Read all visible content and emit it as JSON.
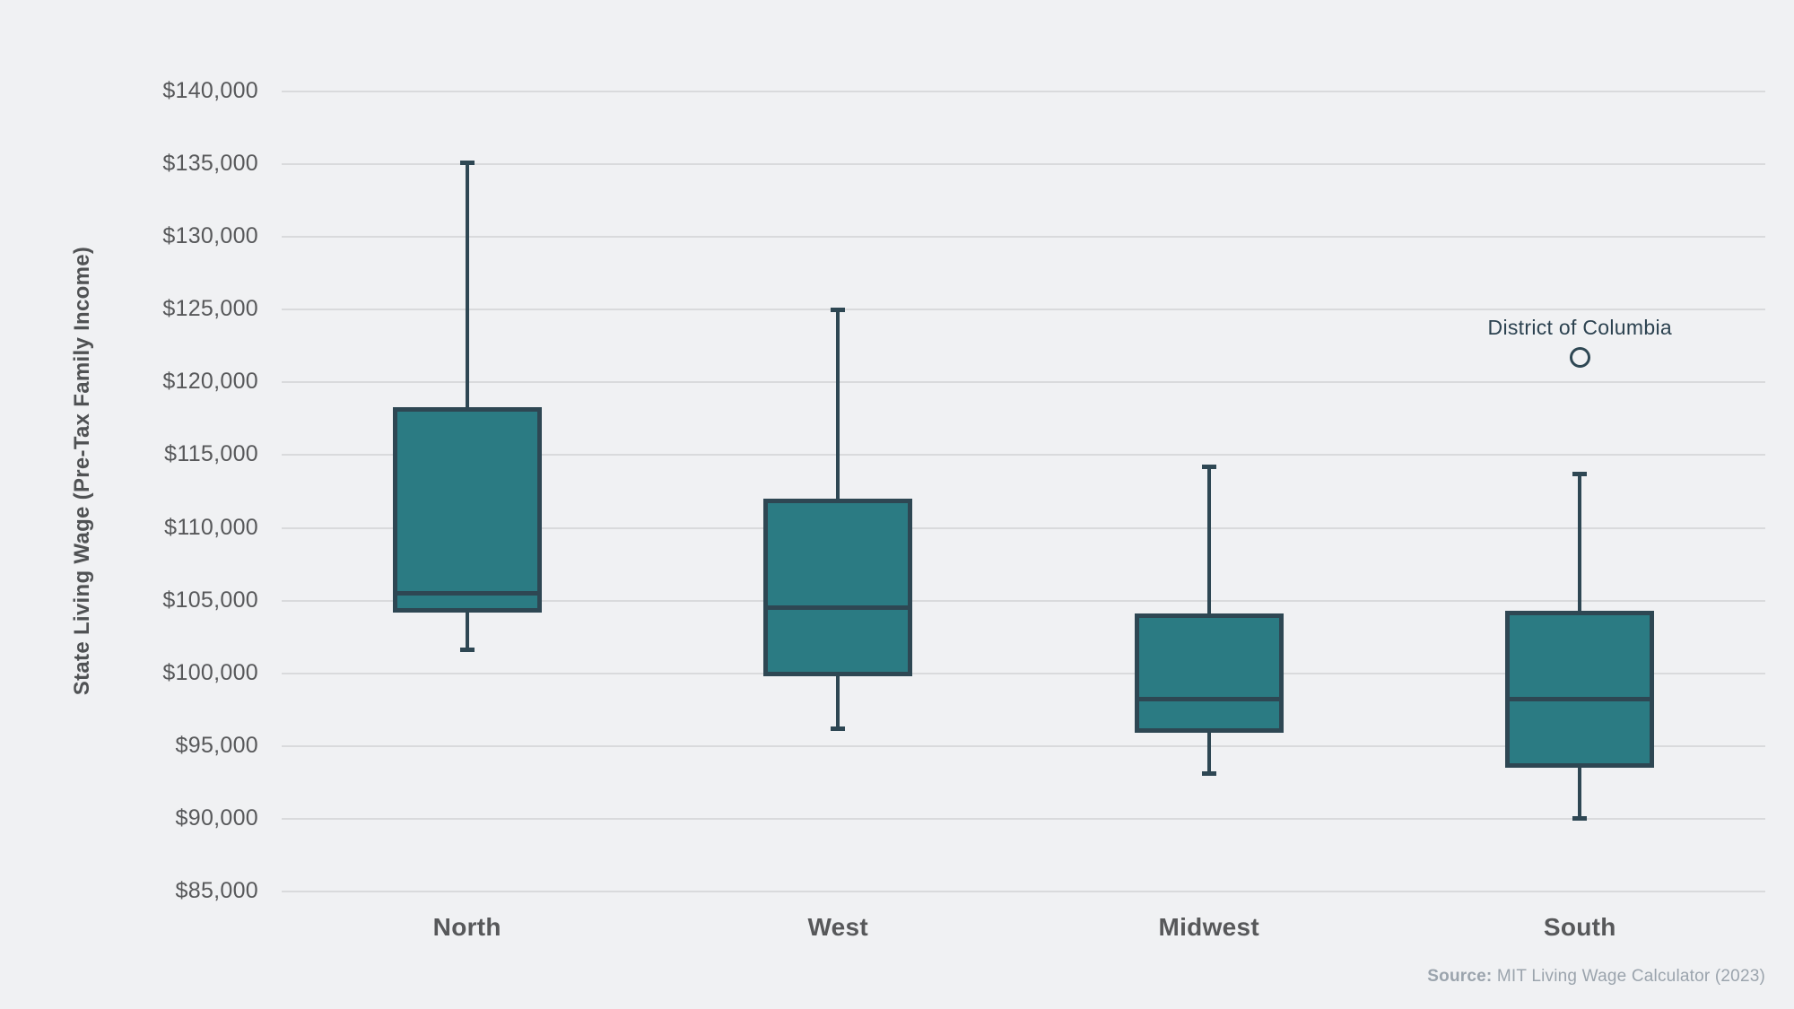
{
  "y_axis": {
    "label": "State Living Wage (Pre-Tax Family Income)",
    "ticks": [
      {
        "value": 140000,
        "label": "$140,000"
      },
      {
        "value": 135000,
        "label": "$135,000"
      },
      {
        "value": 130000,
        "label": "$130,000"
      },
      {
        "value": 125000,
        "label": "$125,000"
      },
      {
        "value": 120000,
        "label": "$120,000"
      },
      {
        "value": 115000,
        "label": "$115,000"
      },
      {
        "value": 110000,
        "label": "$110,000"
      },
      {
        "value": 105000,
        "label": "$105,000"
      },
      {
        "value": 100000,
        "label": "$100,000"
      },
      {
        "value": 95000,
        "label": "$95,000"
      },
      {
        "value": 90000,
        "label": "$90,000"
      },
      {
        "value": 85000,
        "label": "$85,000"
      }
    ]
  },
  "source": {
    "prefix": "Source:",
    "text": " MIT Living Wage Calculator (2023)"
  },
  "colors": {
    "background": "#f0f1f3",
    "gridline": "#d9dadc",
    "box_fill": "#2b7b83",
    "box_stroke": "#2e4753",
    "tick_label": "#57585a",
    "x_label": "#57585a",
    "y_title": "#505254",
    "outlier_label": "#2c4250",
    "source_text": "#9ba4ad"
  },
  "chart_data": {
    "type": "boxplot",
    "title": "",
    "ylabel": "State Living Wage (Pre-Tax Family Income)",
    "xlabel": "",
    "ylim": [
      85000,
      140000
    ],
    "yticks": [
      85000,
      90000,
      95000,
      100000,
      105000,
      110000,
      115000,
      120000,
      125000,
      130000,
      135000,
      140000
    ],
    "grid": true,
    "legend": false,
    "categories": [
      "North",
      "West",
      "Midwest",
      "South"
    ],
    "series": [
      {
        "name": "North",
        "min": 101600,
        "q1": 104200,
        "median": 105500,
        "q3": 118300,
        "max": 135100,
        "outliers": []
      },
      {
        "name": "West",
        "min": 96200,
        "q1": 99800,
        "median": 104500,
        "q3": 112000,
        "max": 125000,
        "outliers": []
      },
      {
        "name": "Midwest",
        "min": 93100,
        "q1": 95900,
        "median": 98200,
        "q3": 104100,
        "max": 114200,
        "outliers": []
      },
      {
        "name": "South",
        "min": 90000,
        "q1": 93500,
        "median": 98200,
        "q3": 104300,
        "max": 113700,
        "outliers": [
          {
            "label": "District of Columbia",
            "value": 121700
          }
        ]
      }
    ],
    "source": "Source: MIT Living Wage Calculator (2023)"
  }
}
